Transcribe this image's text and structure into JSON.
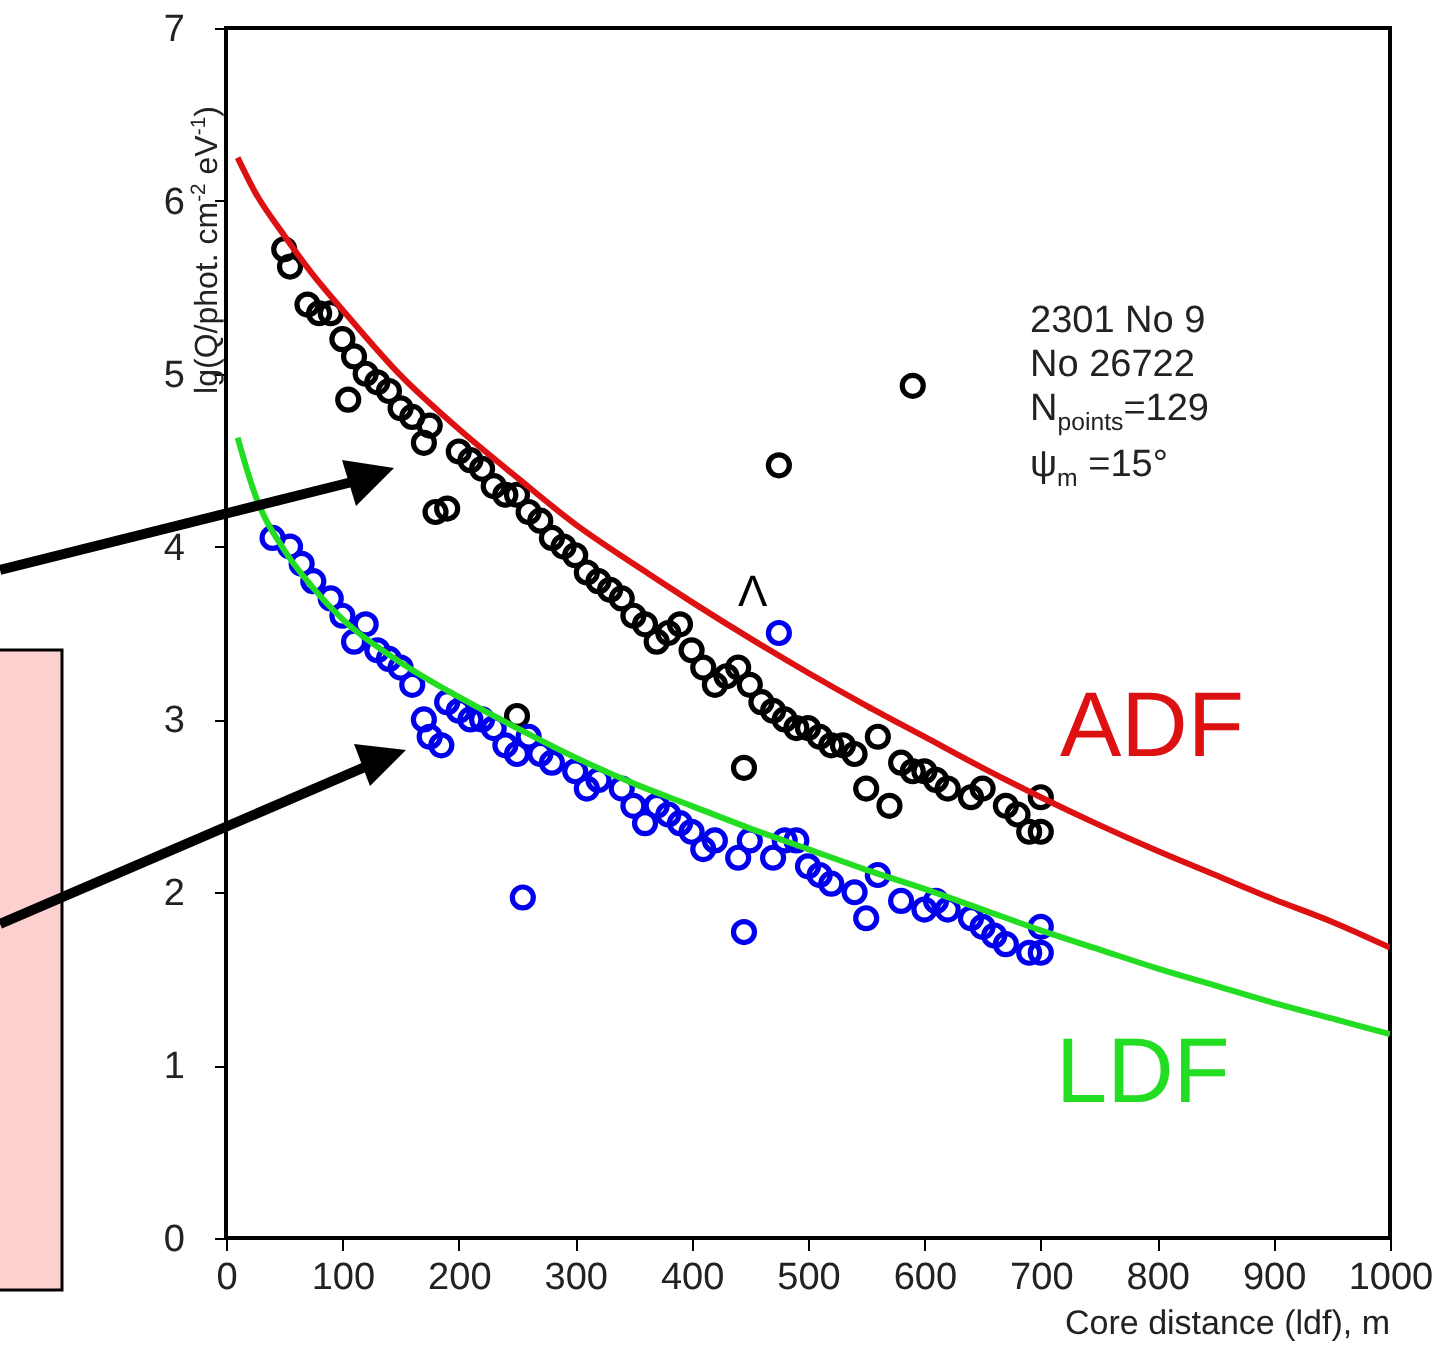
{
  "chart_data": {
    "type": "scatter",
    "xlabel": "Core distance (ldf), m",
    "ylabel": "lg(Q/phot. cm$^{-2}$ eV$^{-1}$)",
    "xlim": [
      0,
      1000
    ],
    "xticks": [
      0,
      100,
      200,
      300,
      400,
      500,
      600,
      700,
      800,
      900,
      1000
    ],
    "ylim": [
      0,
      7
    ],
    "yticks": [
      0,
      1,
      2,
      3,
      4,
      5,
      6,
      7
    ],
    "grid": false,
    "marker": "circle",
    "annotations": [
      "2301 No 9",
      "No 26722",
      "N$_{points}$=129",
      "ψ$_{m}$ =15°",
      "Λ"
    ],
    "series": [
      {
        "color": "#000000",
        "x": [
          50,
          55,
          70,
          80,
          90,
          100,
          105,
          110,
          120,
          130,
          140,
          150,
          160,
          170,
          175,
          180,
          190,
          200,
          210,
          220,
          230,
          240,
          250,
          250,
          260,
          270,
          280,
          290,
          300,
          310,
          320,
          330,
          340,
          350,
          360,
          370,
          380,
          390,
          400,
          410,
          420,
          430,
          440,
          445,
          450,
          460,
          470,
          475,
          480,
          490,
          500,
          510,
          520,
          530,
          540,
          550,
          560,
          570,
          580,
          590,
          590,
          600,
          610,
          620,
          640,
          650,
          670,
          680,
          690,
          700,
          700
        ],
        "values": [
          5.72,
          5.62,
          5.4,
          5.35,
          5.35,
          5.2,
          4.85,
          5.1,
          5.0,
          4.95,
          4.9,
          4.8,
          4.75,
          4.6,
          4.7,
          4.2,
          4.22,
          4.55,
          4.5,
          4.45,
          4.35,
          4.3,
          4.3,
          3.02,
          4.2,
          4.15,
          4.05,
          4.0,
          3.95,
          3.85,
          3.8,
          3.75,
          3.7,
          3.6,
          3.55,
          3.45,
          3.5,
          3.55,
          3.4,
          3.3,
          3.2,
          3.25,
          3.3,
          2.72,
          3.2,
          3.1,
          3.05,
          4.47,
          3.0,
          2.95,
          2.95,
          2.9,
          2.85,
          2.85,
          2.8,
          2.6,
          2.9,
          2.5,
          2.75,
          2.7,
          4.93,
          2.7,
          2.65,
          2.6,
          2.55,
          2.6,
          2.5,
          2.45,
          2.35,
          2.55,
          2.35
        ]
      },
      {
        "color": "#0000ee",
        "x": [
          40,
          55,
          65,
          75,
          90,
          100,
          110,
          120,
          130,
          140,
          150,
          160,
          170,
          175,
          185,
          190,
          200,
          210,
          220,
          230,
          240,
          250,
          255,
          260,
          270,
          280,
          300,
          310,
          320,
          340,
          350,
          360,
          370,
          380,
          390,
          400,
          410,
          420,
          440,
          445,
          450,
          470,
          475,
          480,
          490,
          500,
          510,
          520,
          540,
          550,
          560,
          580,
          600,
          610,
          620,
          640,
          650,
          660,
          670,
          690,
          700,
          700
        ],
        "values": [
          4.05,
          4.0,
          3.9,
          3.8,
          3.7,
          3.6,
          3.45,
          3.55,
          3.4,
          3.35,
          3.3,
          3.2,
          3.0,
          2.9,
          2.85,
          3.1,
          3.05,
          3.0,
          3.0,
          2.95,
          2.85,
          2.8,
          1.97,
          2.9,
          2.8,
          2.75,
          2.7,
          2.6,
          2.65,
          2.6,
          2.5,
          2.4,
          2.5,
          2.45,
          2.4,
          2.35,
          2.25,
          2.3,
          2.2,
          1.77,
          2.3,
          2.2,
          3.5,
          2.3,
          2.3,
          2.15,
          2.1,
          2.05,
          2.0,
          1.85,
          2.1,
          1.95,
          1.9,
          1.95,
          1.9,
          1.85,
          1.8,
          1.75,
          1.7,
          1.65,
          1.8,
          1.65
        ]
      },
      {
        "type": "line",
        "name": "ADF",
        "color": "#dd1111",
        "marker": "none",
        "x": [
          10,
          25,
          50,
          75,
          100,
          150,
          200,
          250,
          300,
          350,
          400,
          450,
          500,
          550,
          600,
          650,
          700,
          750,
          800,
          850,
          900,
          950,
          1000
        ],
        "values": [
          6.25,
          6.05,
          5.8,
          5.57,
          5.37,
          4.99,
          4.68,
          4.4,
          4.13,
          3.9,
          3.68,
          3.47,
          3.27,
          3.08,
          2.9,
          2.72,
          2.55,
          2.39,
          2.24,
          2.1,
          1.96,
          1.83,
          1.68
        ]
      },
      {
        "type": "line",
        "name": "LDF",
        "color": "#22dd22",
        "marker": "none",
        "x": [
          10,
          25,
          50,
          75,
          100,
          150,
          200,
          250,
          300,
          350,
          400,
          450,
          500,
          550,
          600,
          650,
          700,
          750,
          800,
          850,
          900,
          950,
          1000
        ],
        "values": [
          4.63,
          4.3,
          3.98,
          3.76,
          3.58,
          3.33,
          3.13,
          2.95,
          2.78,
          2.63,
          2.5,
          2.37,
          2.25,
          2.13,
          2.02,
          1.9,
          1.78,
          1.67,
          1.56,
          1.46,
          1.36,
          1.27,
          1.18
        ]
      }
    ]
  }
}
